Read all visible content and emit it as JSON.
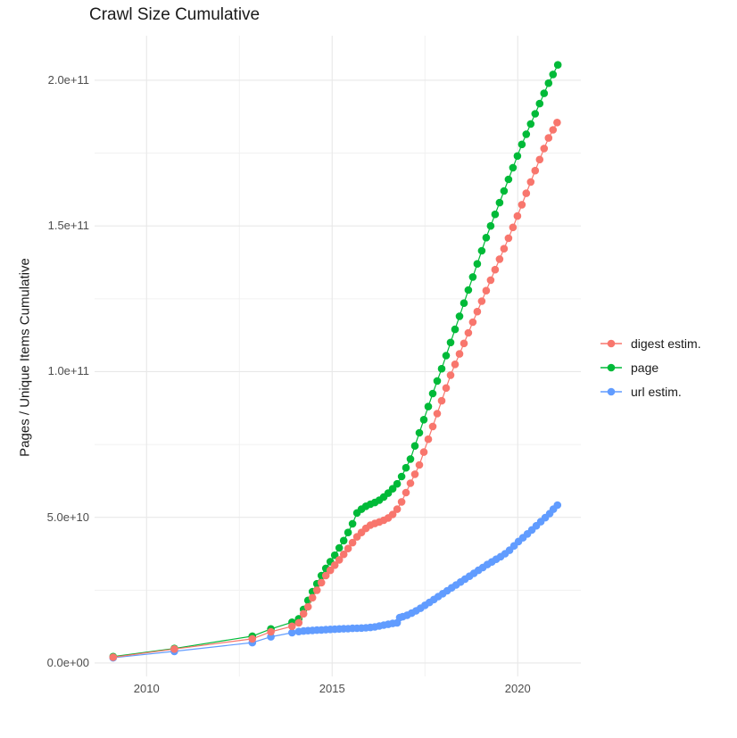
{
  "chart_data": {
    "type": "line",
    "title": "Crawl Size Cumulative",
    "xlabel": "",
    "ylabel": "Pages / Unique Items Cumulative",
    "value_unit_multiplier": 1000000000.0,
    "xlim": [
      2008.6,
      2021.7
    ],
    "ylim_billions": [
      -4.6,
      215.3
    ],
    "grid": "on",
    "legend_position": "right",
    "x_ticks": [
      {
        "v": 2010,
        "label": "2010"
      },
      {
        "v": 2015,
        "label": "2015"
      },
      {
        "v": 2020,
        "label": "2020"
      }
    ],
    "x_minor": [
      2012.5,
      2017.5
    ],
    "y_ticks": [
      {
        "v": 0,
        "label": "0.0e+00"
      },
      {
        "v": 50,
        "label": "5.0e+10"
      },
      {
        "v": 100,
        "label": "1.0e+11"
      },
      {
        "v": 150,
        "label": "1.5e+11"
      },
      {
        "v": 200,
        "label": "2.0e+11"
      }
    ],
    "y_minor": [
      25,
      75,
      125,
      175
    ],
    "colors": {
      "digest": "#F8766D",
      "page": "#00BA38",
      "url": "#619CFF",
      "grid_major": "#e8e8e8",
      "grid_minor": "#f1f1f1",
      "tick_text": "#4d4d4d",
      "title_text": "#1a1a1a"
    },
    "series": [
      {
        "name": "page",
        "color": "#00BA38",
        "z": 1,
        "points": [
          [
            2009.1,
            2.2
          ],
          [
            2010.75,
            5.0
          ],
          [
            2012.85,
            9.2
          ],
          [
            2013.35,
            11.7
          ],
          [
            2013.92,
            14.0
          ],
          [
            2014.1,
            15.2
          ],
          [
            2014.23,
            18.4
          ],
          [
            2014.35,
            21.5
          ],
          [
            2014.47,
            24.5
          ],
          [
            2014.59,
            27.2
          ],
          [
            2014.71,
            30.0
          ],
          [
            2014.83,
            32.5
          ],
          [
            2014.95,
            34.8
          ],
          [
            2015.07,
            37.0
          ],
          [
            2015.19,
            39.5
          ],
          [
            2015.31,
            42.0
          ],
          [
            2015.43,
            44.8
          ],
          [
            2015.55,
            47.8
          ],
          [
            2015.67,
            51.5
          ],
          [
            2015.79,
            52.8
          ],
          [
            2015.91,
            53.8
          ],
          [
            2016.03,
            54.5
          ],
          [
            2016.15,
            55.1
          ],
          [
            2016.27,
            55.9
          ],
          [
            2016.39,
            57.0
          ],
          [
            2016.51,
            58.3
          ],
          [
            2016.63,
            59.8
          ],
          [
            2016.75,
            61.5
          ],
          [
            2016.87,
            64.0
          ],
          [
            2016.99,
            67.0
          ],
          [
            2017.11,
            70.0
          ],
          [
            2017.23,
            74.5
          ],
          [
            2017.35,
            79.0
          ],
          [
            2017.47,
            83.5
          ],
          [
            2017.59,
            88.0
          ],
          [
            2017.71,
            92.5
          ],
          [
            2017.83,
            96.8
          ],
          [
            2017.95,
            101.0
          ],
          [
            2018.07,
            105.5
          ],
          [
            2018.19,
            110.0
          ],
          [
            2018.31,
            114.5
          ],
          [
            2018.43,
            119.0
          ],
          [
            2018.55,
            123.5
          ],
          [
            2018.67,
            128.0
          ],
          [
            2018.79,
            132.5
          ],
          [
            2018.91,
            137.0
          ],
          [
            2019.03,
            141.5
          ],
          [
            2019.15,
            146.0
          ],
          [
            2019.27,
            150.0
          ],
          [
            2019.39,
            154.0
          ],
          [
            2019.51,
            158.0
          ],
          [
            2019.63,
            162.0
          ],
          [
            2019.75,
            166.0
          ],
          [
            2019.87,
            170.0
          ],
          [
            2019.99,
            174.0
          ],
          [
            2020.11,
            178.0
          ],
          [
            2020.23,
            181.5
          ],
          [
            2020.35,
            185.0
          ],
          [
            2020.47,
            188.5
          ],
          [
            2020.59,
            192.0
          ],
          [
            2020.71,
            195.5
          ],
          [
            2020.83,
            199.0
          ],
          [
            2020.95,
            202.0
          ],
          [
            2021.08,
            205.3
          ]
        ]
      },
      {
        "name": "url estim.",
        "color": "#619CFF",
        "z": 2,
        "points": [
          [
            2009.1,
            1.8
          ],
          [
            2010.75,
            4.0
          ],
          [
            2012.85,
            7.0
          ],
          [
            2013.35,
            9.0
          ],
          [
            2013.92,
            10.4
          ],
          [
            2014.1,
            10.8
          ],
          [
            2014.23,
            11.0
          ],
          [
            2014.35,
            11.1
          ],
          [
            2014.47,
            11.2
          ],
          [
            2014.59,
            11.3
          ],
          [
            2014.71,
            11.35
          ],
          [
            2014.83,
            11.45
          ],
          [
            2014.95,
            11.55
          ],
          [
            2015.07,
            11.6
          ],
          [
            2015.19,
            11.7
          ],
          [
            2015.31,
            11.75
          ],
          [
            2015.43,
            11.8
          ],
          [
            2015.55,
            11.9
          ],
          [
            2015.67,
            11.95
          ],
          [
            2015.79,
            12.0
          ],
          [
            2015.91,
            12.1
          ],
          [
            2016.03,
            12.2
          ],
          [
            2016.15,
            12.4
          ],
          [
            2016.27,
            12.7
          ],
          [
            2016.39,
            13.0
          ],
          [
            2016.51,
            13.3
          ],
          [
            2016.63,
            13.6
          ],
          [
            2016.75,
            13.8
          ],
          [
            2016.82,
            15.6
          ],
          [
            2016.9,
            15.9
          ],
          [
            2017.02,
            16.4
          ],
          [
            2017.14,
            17.1
          ],
          [
            2017.26,
            17.9
          ],
          [
            2017.38,
            18.8
          ],
          [
            2017.5,
            19.8
          ],
          [
            2017.62,
            20.8
          ],
          [
            2017.74,
            21.8
          ],
          [
            2017.86,
            22.8
          ],
          [
            2017.98,
            23.8
          ],
          [
            2018.1,
            24.8
          ],
          [
            2018.22,
            25.8
          ],
          [
            2018.34,
            26.8
          ],
          [
            2018.46,
            27.8
          ],
          [
            2018.58,
            28.8
          ],
          [
            2018.7,
            29.8
          ],
          [
            2018.82,
            30.8
          ],
          [
            2018.94,
            31.8
          ],
          [
            2019.06,
            32.8
          ],
          [
            2019.18,
            33.8
          ],
          [
            2019.3,
            34.7
          ],
          [
            2019.42,
            35.6
          ],
          [
            2019.54,
            36.5
          ],
          [
            2019.66,
            37.5
          ],
          [
            2019.78,
            38.7
          ],
          [
            2019.9,
            40.2
          ],
          [
            2020.02,
            41.7
          ],
          [
            2020.14,
            43.0
          ],
          [
            2020.26,
            44.3
          ],
          [
            2020.38,
            45.7
          ],
          [
            2020.5,
            47.1
          ],
          [
            2020.62,
            48.5
          ],
          [
            2020.74,
            49.9
          ],
          [
            2020.86,
            51.3
          ],
          [
            2020.96,
            52.8
          ],
          [
            2021.07,
            54.2
          ]
        ]
      },
      {
        "name": "digest estim.",
        "color": "#F8766D",
        "z": 3,
        "points": [
          [
            2009.1,
            2.0
          ],
          [
            2010.75,
            4.8
          ],
          [
            2012.85,
            8.3
          ],
          [
            2013.35,
            10.7
          ],
          [
            2013.92,
            12.6
          ],
          [
            2014.1,
            13.8
          ],
          [
            2014.23,
            16.9
          ],
          [
            2014.35,
            19.3
          ],
          [
            2014.47,
            22.4
          ],
          [
            2014.59,
            25.0
          ],
          [
            2014.71,
            27.6
          ],
          [
            2014.83,
            30.0
          ],
          [
            2014.95,
            31.8
          ],
          [
            2015.07,
            33.6
          ],
          [
            2015.19,
            35.4
          ],
          [
            2015.31,
            37.3
          ],
          [
            2015.43,
            39.3
          ],
          [
            2015.55,
            41.3
          ],
          [
            2015.67,
            43.3
          ],
          [
            2015.79,
            44.8
          ],
          [
            2015.91,
            46.2
          ],
          [
            2016.03,
            47.3
          ],
          [
            2016.15,
            47.9
          ],
          [
            2016.27,
            48.4
          ],
          [
            2016.39,
            49.0
          ],
          [
            2016.51,
            49.8
          ],
          [
            2016.63,
            51.0
          ],
          [
            2016.75,
            52.8
          ],
          [
            2016.87,
            55.3
          ],
          [
            2016.99,
            58.5
          ],
          [
            2017.11,
            61.7
          ],
          [
            2017.23,
            64.8
          ],
          [
            2017.35,
            68.0
          ],
          [
            2017.47,
            72.4
          ],
          [
            2017.59,
            76.8
          ],
          [
            2017.71,
            81.2
          ],
          [
            2017.83,
            85.6
          ],
          [
            2017.95,
            90.0
          ],
          [
            2018.07,
            94.4
          ],
          [
            2018.19,
            98.8
          ],
          [
            2018.31,
            102.5
          ],
          [
            2018.43,
            106.1
          ],
          [
            2018.55,
            109.7
          ],
          [
            2018.67,
            113.3
          ],
          [
            2018.79,
            117.0
          ],
          [
            2018.91,
            120.6
          ],
          [
            2019.03,
            124.2
          ],
          [
            2019.15,
            127.8
          ],
          [
            2019.27,
            131.4
          ],
          [
            2019.39,
            135.0
          ],
          [
            2019.51,
            138.6
          ],
          [
            2019.63,
            142.2
          ],
          [
            2019.75,
            145.8
          ],
          [
            2019.87,
            149.5
          ],
          [
            2019.99,
            153.4
          ],
          [
            2020.11,
            157.3
          ],
          [
            2020.23,
            161.2
          ],
          [
            2020.35,
            165.1
          ],
          [
            2020.47,
            169.0
          ],
          [
            2020.59,
            172.8
          ],
          [
            2020.71,
            176.6
          ],
          [
            2020.83,
            180.2
          ],
          [
            2020.95,
            183.0
          ],
          [
            2021.06,
            185.5
          ]
        ]
      }
    ],
    "legend": [
      {
        "name": "digest estim.",
        "color": "#F8766D"
      },
      {
        "name": "page",
        "color": "#00BA38"
      },
      {
        "name": "url estim.",
        "color": "#619CFF"
      }
    ]
  }
}
